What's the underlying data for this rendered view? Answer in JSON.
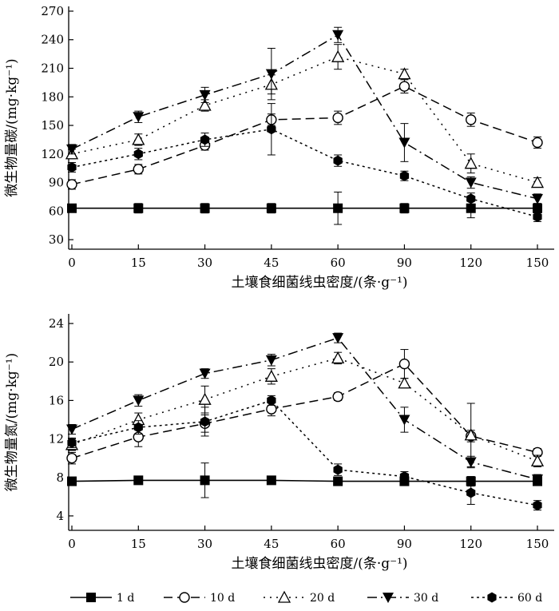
{
  "chart_data": [
    {
      "type": "line",
      "ylabel": "微生物量碳/(mg·kg⁻¹)",
      "xlabel": "土壤食细菌线虫密度/(条·g⁻¹)",
      "categories": [
        "0",
        "15",
        "30",
        "45",
        "60",
        "90",
        "120",
        "150"
      ],
      "ylim": [
        20,
        275
      ],
      "yticks": [
        30,
        60,
        90,
        120,
        150,
        180,
        210,
        240,
        270
      ],
      "series": [
        {
          "name": "1 d",
          "values": [
            63,
            63,
            63,
            63,
            63,
            63,
            63,
            63
          ],
          "err": [
            4,
            5,
            5,
            5,
            17,
            5,
            10,
            5
          ]
        },
        {
          "name": "10 d",
          "values": [
            88,
            104,
            129,
            156,
            158,
            191,
            156,
            132
          ],
          "err": [
            5,
            5,
            5,
            6,
            7,
            7,
            7,
            6
          ]
        },
        {
          "name": "20 d",
          "values": [
            120,
            135,
            171,
            193,
            222,
            204,
            110,
            90
          ],
          "err": [
            5,
            6,
            6,
            10,
            13,
            5,
            10,
            5
          ]
        },
        {
          "name": "30 d",
          "values": [
            125,
            159,
            182,
            204,
            245,
            132,
            90,
            73
          ],
          "err": [
            5,
            6,
            8,
            27,
            8,
            20,
            6,
            5
          ]
        },
        {
          "name": "60 d",
          "values": [
            106,
            120,
            135,
            146,
            113,
            97,
            73,
            54
          ],
          "err": [
            5,
            6,
            7,
            27,
            6,
            5,
            6,
            5
          ]
        }
      ]
    },
    {
      "type": "line",
      "ylabel": "微生物量氮/(mg·kg⁻¹)",
      "xlabel": "土壤食细菌线虫密度/(条·g⁻¹)",
      "categories": [
        "0",
        "15",
        "30",
        "45",
        "60",
        "90",
        "120",
        "150"
      ],
      "ylim": [
        2.5,
        25
      ],
      "yticks": [
        4,
        8,
        12,
        16,
        20,
        24
      ],
      "series": [
        {
          "name": "1 d",
          "values": [
            7.6,
            7.7,
            7.7,
            7.7,
            7.6,
            7.6,
            7.6,
            7.6
          ],
          "err": [
            0.3,
            0.3,
            1.8,
            0.3,
            0.3,
            0.4,
            0.5,
            0.3
          ]
        },
        {
          "name": "10 d",
          "values": [
            10.0,
            12.2,
            13.6,
            15.1,
            16.4,
            19.8,
            12.3,
            10.6
          ],
          "err": [
            0.6,
            1.0,
            0.9,
            0.7,
            0.4,
            1.5,
            0.6,
            0.4
          ]
        },
        {
          "name": "20 d",
          "values": [
            11.4,
            14.0,
            16.1,
            18.5,
            20.4,
            17.8,
            12.4,
            9.7
          ],
          "err": [
            0.6,
            0.7,
            1.4,
            0.8,
            0.6,
            0.5,
            3.3,
            0.6
          ]
        },
        {
          "name": "30 d",
          "values": [
            13.0,
            16.0,
            18.8,
            20.2,
            22.5,
            14.0,
            9.6,
            7.8
          ],
          "err": [
            0.5,
            0.6,
            0.5,
            0.6,
            0.5,
            1.3,
            0.6,
            0.5
          ]
        },
        {
          "name": "60 d",
          "values": [
            11.6,
            13.2,
            13.8,
            16.0,
            8.8,
            8.1,
            6.4,
            5.1
          ],
          "err": [
            0.5,
            0.7,
            1.5,
            0.5,
            0.6,
            0.5,
            1.2,
            0.5
          ]
        }
      ]
    }
  ],
  "legend": [
    "1 d",
    "10 d",
    "20 d",
    "30 d",
    "60 d"
  ]
}
